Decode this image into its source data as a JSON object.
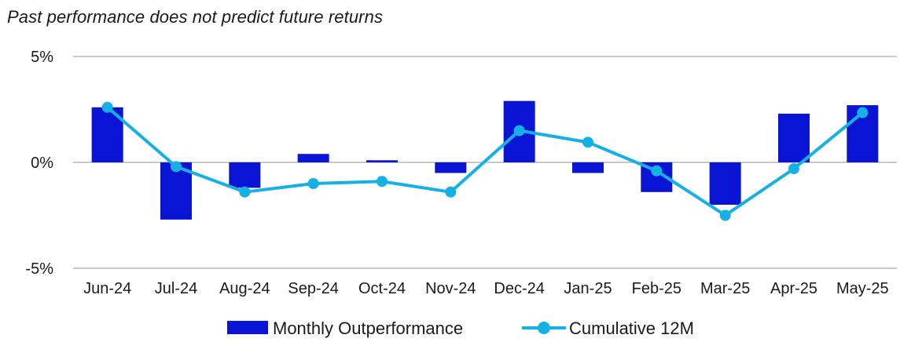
{
  "chart_data": {
    "type": "bar",
    "subtitle": "Past performance does not predict future returns",
    "categories": [
      "Jun-24",
      "Jul-24",
      "Aug-24",
      "Sep-24",
      "Oct-24",
      "Nov-24",
      "Dec-24",
      "Jan-25",
      "Feb-25",
      "Mar-25",
      "Apr-25",
      "May-25"
    ],
    "ylim": [
      -5,
      5
    ],
    "yticks": [
      {
        "value": 5,
        "label": "5%"
      },
      {
        "value": 0,
        "label": "0%"
      },
      {
        "value": -5,
        "label": "-5%"
      }
    ],
    "grid": true,
    "legend_position": "bottom",
    "series": [
      {
        "name": "Monthly Outperformance",
        "type": "bar",
        "color": "#0a14d4",
        "values": [
          2.6,
          -2.7,
          -1.2,
          0.4,
          0.1,
          -0.5,
          2.9,
          -0.5,
          -1.4,
          -2.0,
          2.3,
          2.7
        ]
      },
      {
        "name": "Cumulative 12M",
        "type": "line",
        "color": "#14b0e6",
        "values": [
          2.6,
          -0.2,
          -1.4,
          -1.0,
          -0.9,
          -1.4,
          1.5,
          0.95,
          -0.4,
          -2.5,
          -0.3,
          2.35
        ]
      }
    ]
  },
  "colors": {
    "grid": "#c8c8c8",
    "text": "#1a1a1a"
  }
}
